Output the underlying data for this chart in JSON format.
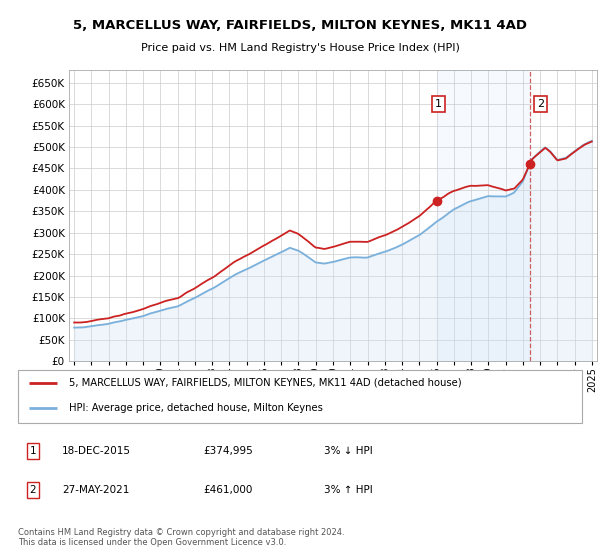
{
  "title": "5, MARCELLUS WAY, FAIRFIELDS, MILTON KEYNES, MK11 4AD",
  "subtitle": "Price paid vs. HM Land Registry's House Price Index (HPI)",
  "legend_line1": "5, MARCELLUS WAY, FAIRFIELDS, MILTON KEYNES, MK11 4AD (detached house)",
  "legend_line2": "HPI: Average price, detached house, Milton Keynes",
  "ann1_label": "1",
  "ann1_date": "18-DEC-2015",
  "ann1_price": "£374,995",
  "ann1_pct": "3% ↓ HPI",
  "ann1_x": 2016.0,
  "ann1_price_val": 374995,
  "ann2_label": "2",
  "ann2_date": "27-MAY-2021",
  "ann2_price": "£461,000",
  "ann2_pct": "3% ↑ HPI",
  "ann2_x": 2021.42,
  "ann2_price_val": 461000,
  "footer": "Contains HM Land Registry data © Crown copyright and database right 2024.\nThis data is licensed under the Open Government Licence v3.0.",
  "ylim": [
    0,
    680000
  ],
  "yticks": [
    0,
    50000,
    100000,
    150000,
    200000,
    250000,
    300000,
    350000,
    400000,
    450000,
    500000,
    550000,
    600000,
    650000
  ],
  "hpi_color": "#7ab0dc",
  "hpi_fill_color": "#cce0f0",
  "price_color": "#cc2222",
  "vline_color": "#cc4444",
  "shade_color": "#ddeeff",
  "background_color": "#ffffff",
  "grid_color": "#cccccc",
  "ann_box_color": "#cc2222",
  "xlim_left": 1994.7,
  "xlim_right": 2025.3
}
